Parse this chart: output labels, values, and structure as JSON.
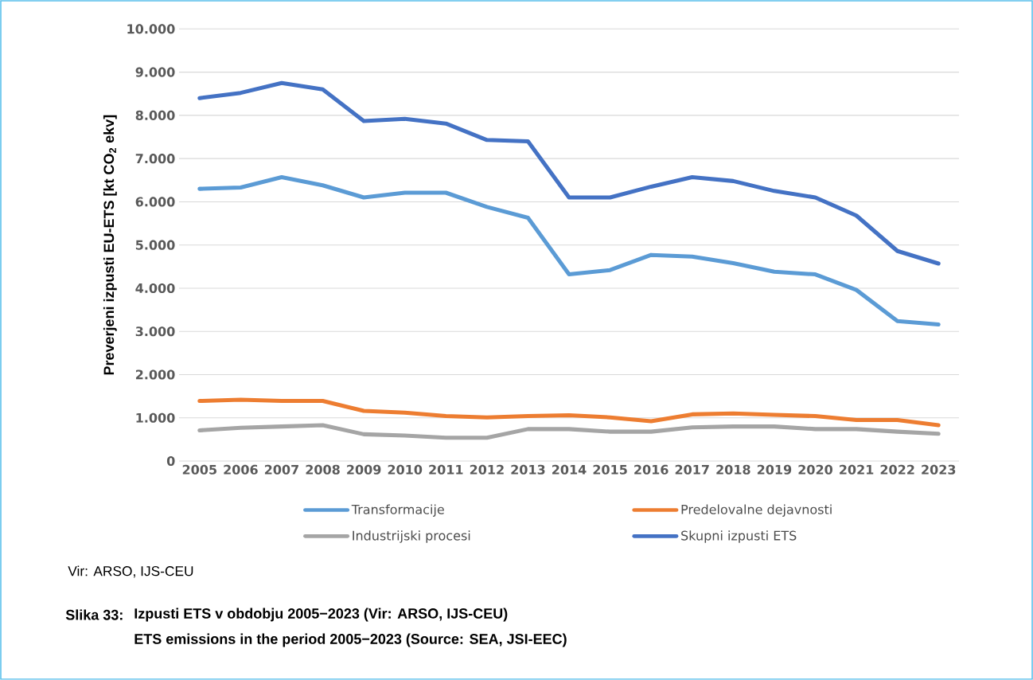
{
  "chart_data": {
    "type": "line",
    "ylabel": "Preverjeni izpusti EU-ETS [kt CO$_{2}$ ekv]",
    "categories": [
      "2005",
      "2006",
      "2007",
      "2008",
      "2009",
      "2010",
      "2011",
      "2012",
      "2013",
      "2014",
      "2015",
      "2016",
      "2017",
      "2018",
      "2019",
      "2020",
      "2021",
      "2022",
      "2023"
    ],
    "series": [
      {
        "name": "Transformacije",
        "color": "#5b9bd5",
        "values": [
          6300,
          6330,
          6570,
          6380,
          6100,
          6210,
          6210,
          5880,
          5630,
          4320,
          4420,
          4770,
          4730,
          4580,
          4380,
          4320,
          3960,
          3240,
          3160
        ]
      },
      {
        "name": "Predelovalne dejavnosti",
        "color": "#ed7d31",
        "values": [
          1390,
          1420,
          1390,
          1390,
          1160,
          1120,
          1040,
          1010,
          1040,
          1060,
          1010,
          920,
          1080,
          1100,
          1070,
          1040,
          950,
          950,
          830
        ]
      },
      {
        "name": "Industrijski procesi",
        "color": "#a5a5a5",
        "values": [
          710,
          770,
          800,
          830,
          620,
          590,
          540,
          540,
          740,
          740,
          680,
          680,
          780,
          800,
          800,
          740,
          740,
          680,
          630
        ]
      },
      {
        "name": "Skupni izpusti ETS",
        "color": "#4472c4",
        "values": [
          8400,
          8520,
          8750,
          8600,
          7870,
          7920,
          7810,
          7430,
          7400,
          6100,
          6100,
          6350,
          6570,
          6480,
          6250,
          6100,
          5680,
          4860,
          4570
        ]
      }
    ],
    "ylim": [
      0,
      10000
    ],
    "yticks": [
      {
        "value": 0,
        "label": "0"
      },
      {
        "value": 1000,
        "label": "1.000"
      },
      {
        "value": 2000,
        "label": "2.000"
      },
      {
        "value": 3000,
        "label": "3.000"
      },
      {
        "value": 4000,
        "label": "4.000"
      },
      {
        "value": 5000,
        "label": "5.000"
      },
      {
        "value": 6000,
        "label": "6.000"
      },
      {
        "value": 7000,
        "label": "7.000"
      },
      {
        "value": 8000,
        "label": "8.000"
      },
      {
        "value": 9000,
        "label": "9.000"
      },
      {
        "value": 10000,
        "label": "10.000"
      }
    ],
    "grid": "y",
    "legend": "bottom",
    "annotations": [
      "Vir: ARSO, IJS-CEU",
      "Slika 33:",
      "Izpusti ETS v obdobju 2005−2023 (Vir: ARSO, IJS-CEU)",
      "ETS emissions in the period 2005−2023 (Source: SEA, JSI-EEC)"
    ]
  }
}
